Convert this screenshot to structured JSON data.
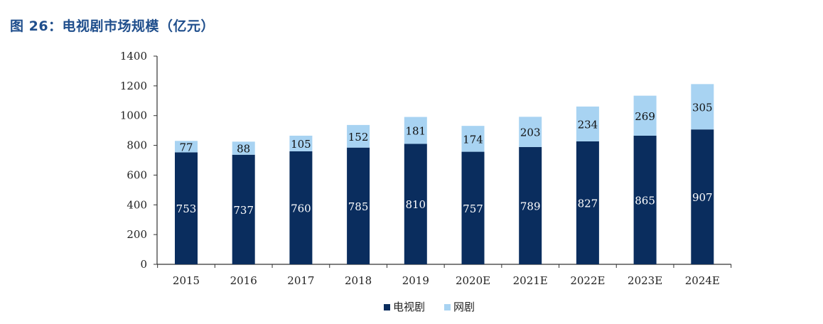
{
  "figure_title": "图 26：电视剧市场规模（亿元）",
  "colors": {
    "tv": "#0a2d5e",
    "web": "#a8d3f2",
    "axis": "#333333"
  },
  "legend": {
    "tv_label": "电视剧",
    "web_label": "网剧"
  },
  "chart_data": {
    "type": "bar",
    "stacked": true,
    "title": "图 26：电视剧市场规模（亿元）",
    "categories": [
      "2015",
      "2016",
      "2017",
      "2018",
      "2019",
      "2020E",
      "2021E",
      "2022E",
      "2023E",
      "2024E"
    ],
    "series": [
      {
        "name": "电视剧",
        "values": [
          753,
          737,
          760,
          785,
          810,
          757,
          789,
          827,
          865,
          907
        ]
      },
      {
        "name": "网剧",
        "values": [
          77,
          88,
          105,
          152,
          181,
          174,
          203,
          234,
          269,
          305
        ]
      }
    ],
    "ylim": [
      0,
      1400
    ],
    "yticks": [
      0,
      200,
      400,
      600,
      800,
      1000,
      1200,
      1400
    ],
    "legend_position": "bottom-center",
    "grid": false
  }
}
